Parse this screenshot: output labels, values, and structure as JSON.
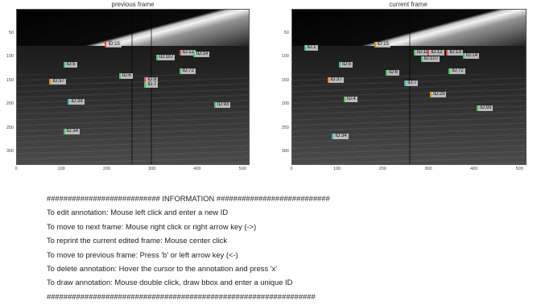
{
  "panels": [
    {
      "title": "previous frame",
      "labels": [
        {
          "text": "ID:15",
          "x": 38,
          "y": 21,
          "color": "red"
        },
        {
          "text": "ID:8",
          "x": 55,
          "y": 44,
          "color": "red"
        },
        {
          "text": "ID:5",
          "x": 20,
          "y": 34,
          "color": "green"
        },
        {
          "text": "ID:37",
          "x": 14,
          "y": 45,
          "color": "orange"
        },
        {
          "text": "ID:6",
          "x": 44,
          "y": 41,
          "color": "green"
        },
        {
          "text": "ID:7",
          "x": 55,
          "y": 47,
          "color": "green"
        },
        {
          "text": "ID:107",
          "x": 60,
          "y": 29,
          "color": "green"
        },
        {
          "text": "ID:12",
          "x": 70,
          "y": 26,
          "color": "red"
        },
        {
          "text": "ID:14",
          "x": 76,
          "y": 27,
          "color": "green"
        },
        {
          "text": "ID:72",
          "x": 70,
          "y": 38,
          "color": "green"
        },
        {
          "text": "ID:38",
          "x": 22,
          "y": 58,
          "color": "teal"
        },
        {
          "text": "ID:34",
          "x": 20,
          "y": 77,
          "color": "green"
        },
        {
          "text": "ID:93",
          "x": 85,
          "y": 60,
          "color": "green"
        }
      ],
      "yticks": [
        "50",
        "100",
        "150",
        "200",
        "250",
        "300"
      ],
      "xticks": [
        "0",
        "100",
        "200",
        "300",
        "400",
        "500"
      ]
    },
    {
      "title": "current frame",
      "labels": [
        {
          "text": "ID:1",
          "x": 5,
          "y": 23,
          "color": "green"
        },
        {
          "text": "ID:15",
          "x": 35,
          "y": 21,
          "color": "orange"
        },
        {
          "text": "ID:11",
          "x": 52,
          "y": 26,
          "color": "green"
        },
        {
          "text": "ID:12",
          "x": 58,
          "y": 26,
          "color": "red"
        },
        {
          "text": "ID:107",
          "x": 55,
          "y": 30,
          "color": "green"
        },
        {
          "text": "ID:13",
          "x": 66,
          "y": 26,
          "color": "red"
        },
        {
          "text": "ID:14",
          "x": 73,
          "y": 28,
          "color": "green"
        },
        {
          "text": "ID:5",
          "x": 20,
          "y": 34,
          "color": "green"
        },
        {
          "text": "ID:37",
          "x": 15,
          "y": 44,
          "color": "orange"
        },
        {
          "text": "ID:6",
          "x": 40,
          "y": 39,
          "color": "green"
        },
        {
          "text": "ID:7",
          "x": 48,
          "y": 46,
          "color": "teal"
        },
        {
          "text": "ID:72",
          "x": 67,
          "y": 38,
          "color": "green"
        },
        {
          "text": "ID:4",
          "x": 22,
          "y": 56,
          "color": "green"
        },
        {
          "text": "ID:29",
          "x": 59,
          "y": 53,
          "color": "orange"
        },
        {
          "text": "ID:34",
          "x": 17,
          "y": 80,
          "color": "teal"
        },
        {
          "text": "ID:93",
          "x": 79,
          "y": 62,
          "color": "green"
        }
      ],
      "yticks": [
        "50",
        "100",
        "150",
        "200",
        "250",
        "300"
      ],
      "xticks": [
        "0",
        "100",
        "200",
        "300",
        "400",
        "500"
      ]
    }
  ],
  "info": {
    "header": "########################### INFORMATION ###########################",
    "lines": [
      "To edit annotation: Mouse left click and enter a new ID",
      "To move to next frame: Mouse right click or right arrow key (->)",
      "To reprint the current edited frame: Mouse center click",
      "To move to previous frame: Press 'b' or left arrow key (<-)",
      "To delete annotation: Hover the cursor to the annotation and press 'x'",
      "To draw annotation: Mouse double click, draw bbox and enter a unique ID"
    ],
    "footer": "################################################################"
  }
}
